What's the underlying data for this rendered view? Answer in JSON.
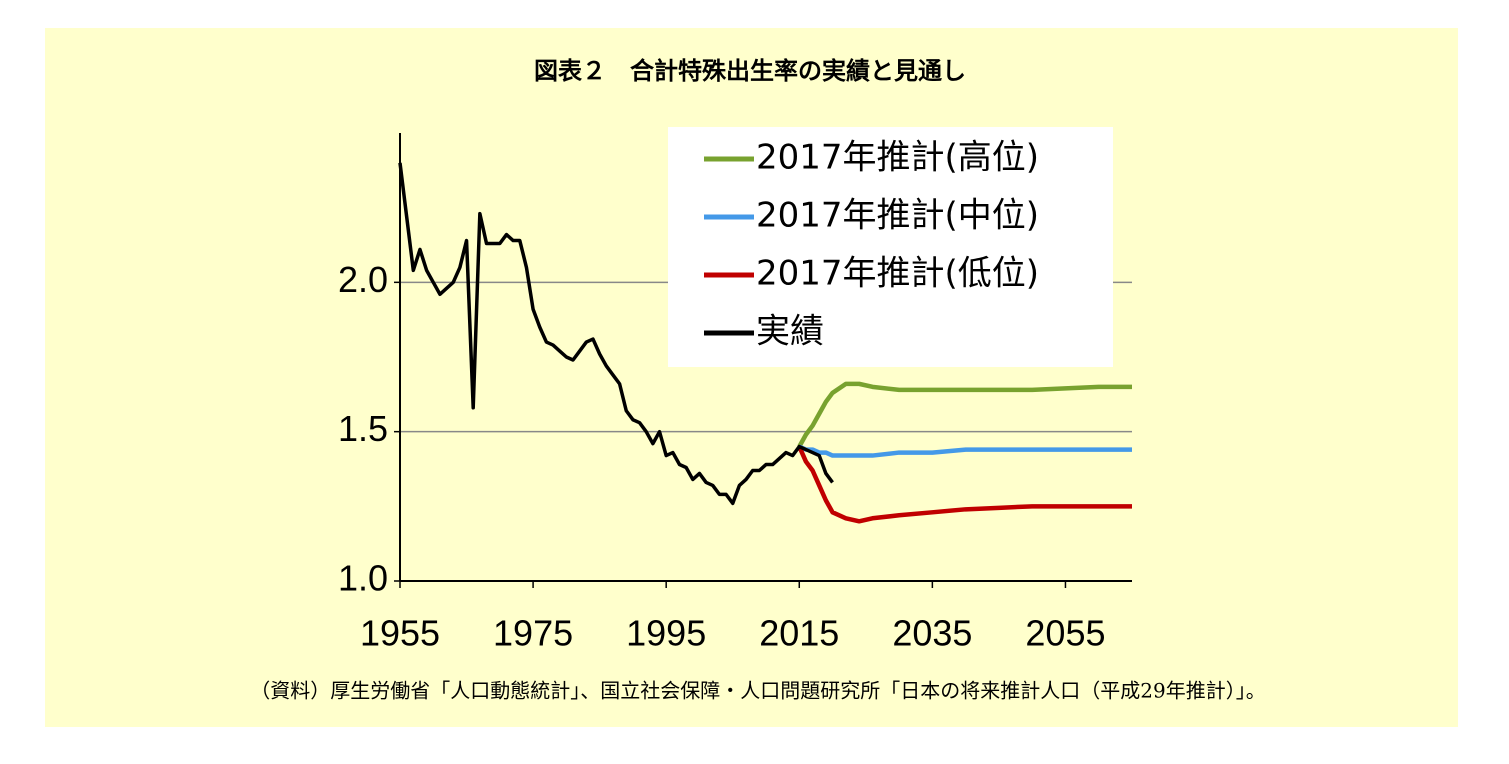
{
  "chart_data": {
    "type": "line",
    "title": "図表２　合計特殊出生率の実績と見通し",
    "source": "（資料）厚生労働省「人口動態統計」、国立社会保障・人口問題研究所「日本の将来推計人口（平成29年推計）」。",
    "xlim": [
      1955,
      2065
    ],
    "xticks": [
      1955,
      1975,
      1995,
      2015,
      2035,
      2055
    ],
    "ylim": [
      1,
      2.5
    ],
    "yticks": [
      {
        "value": 1,
        "label": "1.0"
      },
      {
        "value": 1.5,
        "label": "1.5"
      },
      {
        "value": 2,
        "label": "2.0"
      }
    ],
    "grid": true,
    "legend": "upper right",
    "series": [
      {
        "name": "2017年推計(高位)",
        "color": "#78a22f",
        "x": [
          2015,
          2016,
          2017,
          2018,
          2019,
          2020,
          2022,
          2024,
          2026,
          2030,
          2035,
          2040,
          2045,
          2050,
          2055,
          2060,
          2065
        ],
        "values": [
          1.45,
          1.49,
          1.52,
          1.56,
          1.6,
          1.63,
          1.66,
          1.66,
          1.65,
          1.64,
          1.64,
          1.64,
          1.64,
          1.64,
          1.645,
          1.65,
          1.65
        ]
      },
      {
        "name": "2017年推計(中位)",
        "color": "#4499e8",
        "x": [
          2015,
          2016,
          2017,
          2018,
          2019,
          2020,
          2022,
          2024,
          2026,
          2030,
          2035,
          2040,
          2045,
          2050,
          2055,
          2060,
          2065
        ],
        "values": [
          1.45,
          1.44,
          1.44,
          1.43,
          1.43,
          1.42,
          1.42,
          1.42,
          1.42,
          1.43,
          1.43,
          1.44,
          1.44,
          1.44,
          1.44,
          1.44,
          1.44
        ]
      },
      {
        "name": "2017年推計(低位)",
        "color": "#c00000",
        "x": [
          2015,
          2016,
          2017,
          2018,
          2019,
          2020,
          2022,
          2024,
          2026,
          2030,
          2035,
          2040,
          2045,
          2050,
          2055,
          2060,
          2065
        ],
        "values": [
          1.45,
          1.4,
          1.37,
          1.32,
          1.27,
          1.23,
          1.21,
          1.2,
          1.21,
          1.22,
          1.23,
          1.24,
          1.245,
          1.25,
          1.25,
          1.25,
          1.25
        ]
      },
      {
        "name": "実績",
        "color": "#000000",
        "x": [
          1955,
          1956,
          1957,
          1958,
          1959,
          1960,
          1961,
          1962,
          1963,
          1964,
          1965,
          1966,
          1967,
          1968,
          1969,
          1970,
          1971,
          1972,
          1973,
          1974,
          1975,
          1976,
          1977,
          1978,
          1979,
          1980,
          1981,
          1982,
          1983,
          1984,
          1985,
          1986,
          1987,
          1988,
          1989,
          1990,
          1991,
          1992,
          1993,
          1994,
          1995,
          1996,
          1997,
          1998,
          1999,
          2000,
          2001,
          2002,
          2003,
          2004,
          2005,
          2006,
          2007,
          2008,
          2009,
          2010,
          2011,
          2012,
          2013,
          2014,
          2015,
          2016,
          2017,
          2018,
          2019,
          2020
        ],
        "values": [
          2.4,
          2.22,
          2.04,
          2.11,
          2.04,
          2.0,
          1.96,
          1.98,
          2.0,
          2.05,
          2.14,
          1.58,
          2.23,
          2.13,
          2.13,
          2.13,
          2.16,
          2.14,
          2.14,
          2.05,
          1.91,
          1.85,
          1.8,
          1.79,
          1.77,
          1.75,
          1.74,
          1.77,
          1.8,
          1.81,
          1.76,
          1.72,
          1.69,
          1.66,
          1.57,
          1.54,
          1.53,
          1.5,
          1.46,
          1.5,
          1.42,
          1.43,
          1.39,
          1.38,
          1.34,
          1.36,
          1.33,
          1.32,
          1.29,
          1.29,
          1.26,
          1.32,
          1.34,
          1.37,
          1.37,
          1.39,
          1.39,
          1.41,
          1.43,
          1.42,
          1.45,
          1.44,
          1.43,
          1.42,
          1.36,
          1.33
        ]
      }
    ]
  }
}
